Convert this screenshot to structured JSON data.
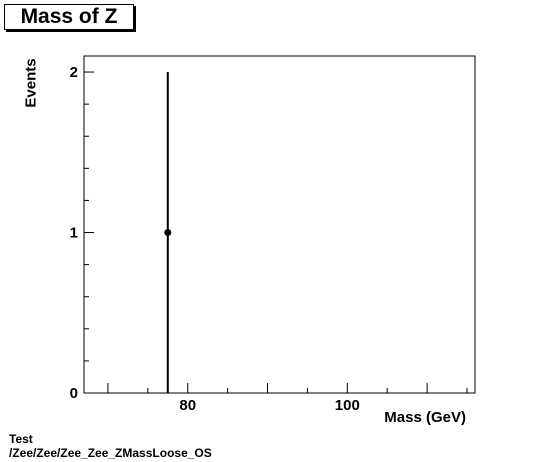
{
  "chart_data": {
    "type": "scatter",
    "title": "Mass of Z",
    "xlabel": "Mass (GeV)",
    "ylabel": "Events",
    "xlim": [
      67,
      116
    ],
    "ylim": [
      0,
      2.1
    ],
    "x_ticks": [
      80,
      100
    ],
    "y_ticks": [
      0,
      1,
      2
    ],
    "series": [
      {
        "points": [
          {
            "x": 77.5,
            "y": 1,
            "y_err_low": 1,
            "y_err_high": 1
          }
        ]
      }
    ],
    "legend": false,
    "grid": false
  },
  "footer": {
    "line1": "Test",
    "line2": "/Zee/Zee/Zee_Zee_ZMassLoose_OS"
  }
}
